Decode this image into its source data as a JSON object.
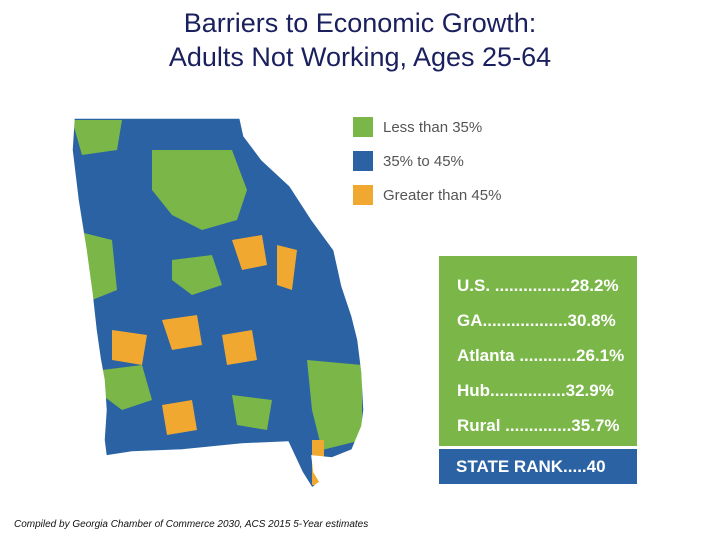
{
  "title": {
    "line1": "Barriers to Economic Growth:",
    "line2": "Adults Not Working, Ages 25-64"
  },
  "legend": [
    {
      "label": "Less than 35%",
      "color": "#7ab648"
    },
    {
      "label": "35% to 45%",
      "color": "#2a62a3"
    },
    {
      "label": "Greater than 45%",
      "color": "#f0a830"
    }
  ],
  "stats": [
    {
      "text": "U.S. ................28.2%"
    },
    {
      "text": "GA..................30.8%"
    },
    {
      "text": "Atlanta ............26.1%"
    },
    {
      "text": "Hub................32.9%"
    },
    {
      "text": "Rural ..............35.7%"
    }
  ],
  "state_rank": "STATE RANK.....40",
  "footer": "Compiled by Georgia Chamber of Commerce 2030, ACS 2015 5-Year estimates",
  "colors": {
    "green": "#7ab648",
    "blue": "#2a62a3",
    "orange": "#f0a830"
  }
}
